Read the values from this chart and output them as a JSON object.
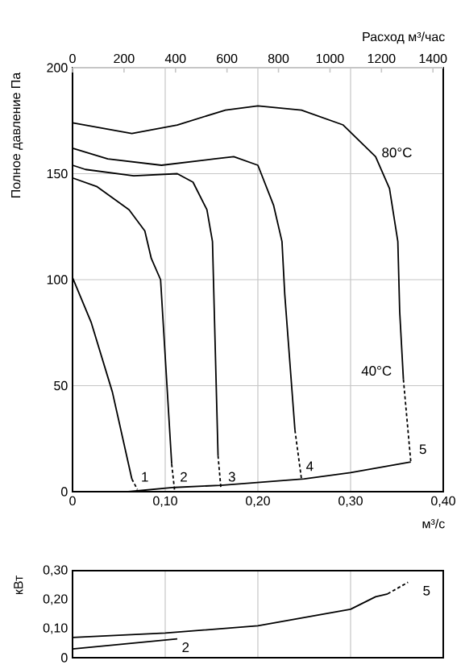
{
  "chart_data": [
    {
      "type": "line",
      "ylabel": "Полное давление Па",
      "xlabel": "м³/с",
      "x2label": "Расход м³/час",
      "xlim": [
        0,
        0.4
      ],
      "xticks": [
        0,
        {
          "value": 0.1,
          "label": "0,10"
        },
        {
          "value": 0.2,
          "label": "0,20"
        },
        {
          "value": 0.3,
          "label": "0,30"
        },
        {
          "value": 0.4,
          "label": "0,40"
        }
      ],
      "x2lim": [
        0,
        1440
      ],
      "x2ticks": [
        0,
        200,
        400,
        600,
        800,
        1000,
        1200,
        1400
      ],
      "ylim": [
        0,
        200
      ],
      "yticks": [
        0,
        50,
        100,
        150,
        200
      ],
      "grid": true,
      "marker": "none",
      "series": [
        {
          "color": "#000000",
          "line_style": "solid",
          "x": [
            0,
            0.02,
            0.043,
            0.064
          ],
          "values": [
            101,
            80,
            47,
            6
          ]
        },
        {
          "color": "#000000",
          "line_style": "dashed",
          "x": [
            0.064,
            0.07
          ],
          "values": [
            6,
            1
          ]
        },
        {
          "color": "#000000",
          "line_style": "solid",
          "x": [
            0,
            0.026,
            0.061,
            0.078,
            0.085,
            0.095,
            0.107
          ],
          "values": [
            148,
            144,
            133,
            123,
            110,
            100,
            13
          ]
        },
        {
          "color": "#000000",
          "line_style": "dashed",
          "x": [
            0.107,
            0.11
          ],
          "values": [
            13,
            1
          ]
        },
        {
          "color": "#000000",
          "line_style": "solid",
          "x": [
            0,
            0.014,
            0.066,
            0.113,
            0.13,
            0.145,
            0.151,
            0.157
          ],
          "values": [
            154,
            152,
            149,
            150,
            146,
            133,
            118,
            17
          ]
        },
        {
          "color": "#000000",
          "line_style": "dashed",
          "x": [
            0.157,
            0.16
          ],
          "values": [
            17,
            2
          ]
        },
        {
          "color": "#000000",
          "line_style": "solid",
          "x": [
            0,
            0.038,
            0.096,
            0.153,
            0.174,
            0.2,
            0.217,
            0.226,
            0.229,
            0.24
          ],
          "values": [
            162,
            157,
            154,
            157,
            158,
            154,
            135,
            118,
            93,
            29
          ]
        },
        {
          "color": "#000000",
          "line_style": "dashed",
          "x": [
            0.24,
            0.247
          ],
          "values": [
            29,
            6
          ]
        },
        {
          "color": "#000000",
          "line_style": "solid",
          "x": [
            0,
            0.064,
            0.113,
            0.165,
            0.2,
            0.247,
            0.292,
            0.327,
            0.342,
            0.351,
            0.353,
            0.357
          ],
          "values": [
            174,
            169,
            173,
            180,
            182,
            180,
            173,
            158,
            143,
            118,
            85,
            53
          ]
        },
        {
          "color": "#000000",
          "line_style": "dashed",
          "x": [
            0.357,
            0.365
          ],
          "values": [
            53,
            14
          ]
        },
        {
          "color": "#000000",
          "line_style": "solid",
          "x": [
            0.06,
            0.11,
            0.16,
            0.25,
            0.3,
            0.365
          ],
          "values": [
            0,
            2,
            3,
            6,
            9,
            14
          ]
        }
      ],
      "annotations": [
        "80°C",
        "40°C",
        "1",
        "2",
        "3",
        "4",
        "5"
      ]
    },
    {
      "type": "line",
      "ylabel": "кВт",
      "xlim": [
        0,
        0.4
      ],
      "xticks": [
        0,
        {
          "value": 0.1,
          "label": null
        },
        {
          "value": 0.2,
          "label": null
        },
        {
          "value": 0.3,
          "label": null
        },
        {
          "value": 0.4,
          "label": null
        }
      ],
      "ylim": [
        0,
        0.3
      ],
      "yticks": [
        0,
        {
          "value": 0.1,
          "label": "0,10"
        },
        {
          "value": 0.2,
          "label": "0,20"
        },
        {
          "value": 0.3,
          "label": "0,30"
        }
      ],
      "grid": "x",
      "tick_labels": "y",
      "marker": "none",
      "series": [
        {
          "color": "#000000",
          "line_style": "solid",
          "x": [
            0,
            0.1,
            0.2,
            0.3,
            0.327,
            0.34
          ],
          "values": [
            0.07,
            0.085,
            0.11,
            0.167,
            0.21,
            0.22
          ]
        },
        {
          "color": "#000000",
          "line_style": "dashed",
          "x": [
            0.34,
            0.362
          ],
          "values": [
            0.22,
            0.26
          ]
        },
        {
          "color": "#000000",
          "line_style": "solid",
          "x": [
            0,
            0.113
          ],
          "values": [
            0.03,
            0.065
          ]
        }
      ],
      "annotations": [
        "5",
        "2"
      ]
    }
  ]
}
